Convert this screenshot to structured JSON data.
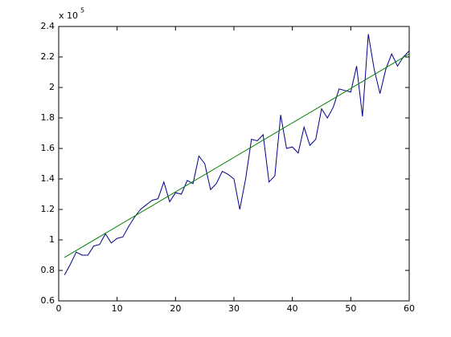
{
  "chart_data": {
    "type": "line",
    "y_scale_label": "x 10",
    "y_scale_exponent": "5",
    "xlim": [
      0,
      60
    ],
    "xticks": [
      0,
      10,
      20,
      30,
      40,
      50,
      60
    ],
    "ylim": [
      0.6,
      2.4
    ],
    "yticks": [
      0.6,
      0.8,
      1,
      1.2,
      1.4,
      1.6,
      1.8,
      2,
      2.2,
      2.4
    ],
    "grid": false,
    "series": [
      {
        "color": "#00008b",
        "x": [
          1,
          2,
          3,
          4,
          5,
          6,
          7,
          8,
          9,
          10,
          11,
          12,
          13,
          14,
          15,
          16,
          17,
          18,
          19,
          20,
          21,
          22,
          23,
          24,
          25,
          26,
          27,
          28,
          29,
          30,
          31,
          32,
          33,
          34,
          35,
          36,
          37,
          38,
          39,
          40,
          41,
          42,
          43,
          44,
          45,
          46,
          47,
          48,
          49,
          50,
          51,
          52,
          53,
          54,
          55,
          56,
          57,
          58,
          59,
          60
        ],
        "values": [
          0.77,
          0.84,
          0.92,
          0.9,
          0.9,
          0.96,
          0.97,
          1.04,
          0.98,
          1.01,
          1.02,
          1.09,
          1.15,
          1.2,
          1.23,
          1.26,
          1.27,
          1.38,
          1.25,
          1.31,
          1.3,
          1.39,
          1.37,
          1.55,
          1.5,
          1.33,
          1.37,
          1.45,
          1.43,
          1.4,
          1.2,
          1.4,
          1.66,
          1.65,
          1.69,
          1.38,
          1.42,
          1.82,
          1.6,
          1.61,
          1.57,
          1.74,
          1.62,
          1.66,
          1.86,
          1.8,
          1.87,
          1.99,
          1.98,
          1.97,
          2.14,
          1.81,
          2.35,
          2.12,
          1.96,
          2.12,
          2.22,
          2.14,
          2.2,
          2.24
        ]
      },
      {
        "color": "#008000",
        "x": [
          1,
          60
        ],
        "values": [
          0.885,
          2.22
        ]
      }
    ]
  }
}
